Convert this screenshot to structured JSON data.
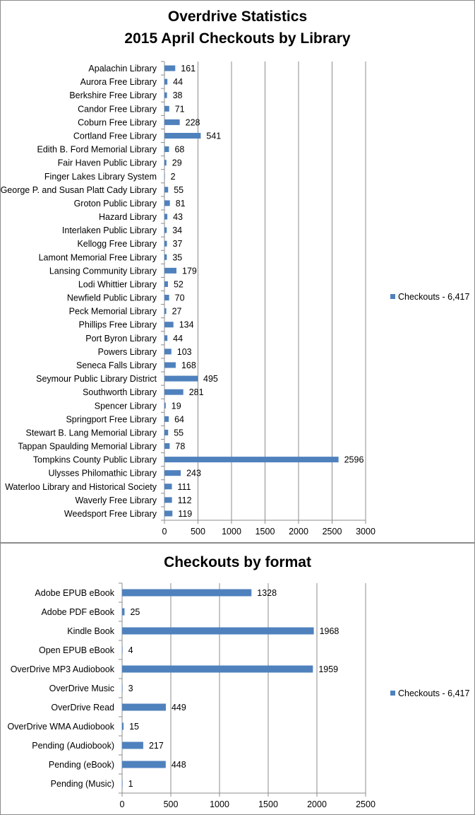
{
  "chart_data": [
    {
      "type": "bar",
      "orientation": "horizontal",
      "title": "Overdrive Statistics",
      "subtitle": "2015 April Checkouts by Library",
      "categories": [
        "Apalachin Library",
        "Aurora Free Library",
        "Berkshire Free Library",
        "Candor Free Library",
        "Coburn Free Library",
        "Cortland Free Library",
        "Edith B. Ford Memorial Library",
        "Fair Haven Public Library",
        "Finger Lakes Library System",
        "George P. and Susan Platt Cady Library",
        "Groton Public Library",
        "Hazard Library",
        "Interlaken Public Library",
        "Kellogg Free Library",
        "Lamont Memorial Free Library",
        "Lansing Community Library",
        "Lodi Whittier Library",
        "Newfield Public Library",
        "Peck Memorial Library",
        "Phillips Free Library",
        "Port Byron Library",
        "Powers Library",
        "Seneca Falls Library",
        "Seymour Public Library District",
        "Southworth Library",
        "Spencer Library",
        "Springport Free Library",
        "Stewart B. Lang Memorial Library",
        "Tappan Spaulding Memorial Library",
        "Tompkins County Public Library",
        "Ulysses Philomathic Library",
        "Waterloo Library and Historical Society",
        "Waverly Free Library",
        "Weedsport Free Library"
      ],
      "series": [
        {
          "name": "Checkouts - 6,417",
          "values": [
            161,
            44,
            38,
            71,
            228,
            541,
            68,
            29,
            2,
            55,
            81,
            43,
            34,
            37,
            35,
            179,
            52,
            70,
            27,
            134,
            44,
            103,
            168,
            495,
            281,
            19,
            64,
            55,
            78,
            2596,
            243,
            111,
            112,
            119
          ]
        }
      ],
      "x_ticks": [
        0,
        500,
        1000,
        1500,
        2000,
        2500,
        3000
      ],
      "xlim": [
        0,
        3000
      ],
      "grid": true,
      "legend": "right",
      "bar_color": "#4f81bd"
    },
    {
      "type": "bar",
      "orientation": "horizontal",
      "title": "Checkouts by format",
      "categories": [
        "Adobe EPUB eBook",
        "Adobe PDF eBook",
        "Kindle Book",
        "Open EPUB eBook",
        "OverDrive MP3 Audiobook",
        "OverDrive Music",
        "OverDrive Read",
        "OverDrive WMA Audiobook",
        "Pending (Audiobook)",
        "Pending (eBook)",
        "Pending (Music)"
      ],
      "series": [
        {
          "name": "Checkouts - 6,417",
          "values": [
            1328,
            25,
            1968,
            4,
            1959,
            3,
            449,
            15,
            217,
            448,
            1
          ]
        }
      ],
      "x_ticks": [
        0,
        500,
        1000,
        1500,
        2000,
        2500
      ],
      "xlim": [
        0,
        2500
      ],
      "grid": true,
      "legend": "right",
      "bar_color": "#4f81bd"
    }
  ]
}
